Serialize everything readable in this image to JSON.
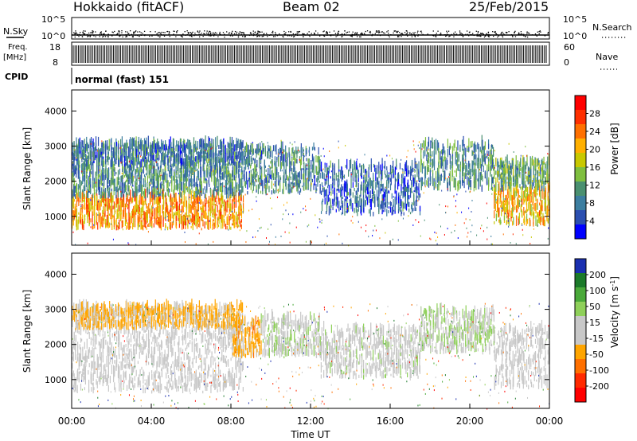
{
  "header": {
    "site": "Hokkaido (fitACF)",
    "beam": "Beam 02",
    "date": "25/Feb/2015"
  },
  "strip_panels": {
    "nsky_label": "N.Sky",
    "nsearch_label": "N.Search",
    "nsky_tick_top": "10^5",
    "nsky_tick_bottom": "10^0",
    "freq_label": "Freq.",
    "freq_unit": "[MHz]",
    "freq_ticks": [
      "18",
      "8"
    ],
    "nave_label": "Nave",
    "nave_ticks": [
      "60",
      "0"
    ],
    "cpid_label": "CPID",
    "cpid_text": "normal (fast) 151"
  },
  "colors": {
    "power_scale": [
      "#0000ff",
      "#2b4fb0",
      "#3c7ea0",
      "#4a9070",
      "#7fbf3f",
      "#c8c800",
      "#ffb000",
      "#ff7000",
      "#ff3000",
      "#ff0000"
    ],
    "velocity_scale": [
      "#1a2fb0",
      "#1c7a2a",
      "#4aa93a",
      "#8fd05a",
      "#c8c8c8",
      "#c8c8c8",
      "#ffa500",
      "#ff7000",
      "#ff2a00",
      "#ff0000"
    ]
  },
  "chart_data": [
    {
      "type": "heatmap",
      "name": "power",
      "ylabel": "Slant Range [km]",
      "ylim": [
        180,
        4600
      ],
      "yticks": [
        1000,
        2000,
        3000,
        4000
      ],
      "xlim": [
        0,
        24
      ],
      "colorbar": {
        "label": "Power [dB]",
        "ticks": [
          "4",
          "8",
          "12",
          "16",
          "20",
          "24",
          "28"
        ],
        "range": [
          0,
          32
        ]
      },
      "bands": [
        {
          "t0": 0.0,
          "t1": 8.6,
          "r0": 600,
          "r1": 1500,
          "level": 22
        },
        {
          "t0": 0.0,
          "t1": 8.6,
          "r0": 1500,
          "r1": 2400,
          "level": 10
        },
        {
          "t0": 0.0,
          "t1": 8.6,
          "r0": 2400,
          "r1": 3000,
          "level": 8
        },
        {
          "t0": 8.6,
          "t1": 12.5,
          "r0": 1600,
          "r1": 2900,
          "level": 9
        },
        {
          "t0": 12.5,
          "t1": 17.5,
          "r0": 1000,
          "r1": 2400,
          "level": 7
        },
        {
          "t0": 17.5,
          "t1": 21.2,
          "r0": 1700,
          "r1": 3000,
          "level": 10
        },
        {
          "t0": 21.2,
          "t1": 24.0,
          "r0": 700,
          "r1": 1700,
          "level": 20
        },
        {
          "t0": 21.2,
          "t1": 24.0,
          "r0": 1700,
          "r1": 2500,
          "level": 12
        }
      ]
    },
    {
      "type": "heatmap",
      "name": "velocity",
      "ylabel": "Slant Range [km]",
      "ylim": [
        180,
        4600
      ],
      "yticks": [
        1000,
        2000,
        3000,
        4000
      ],
      "xlim": [
        0,
        24
      ],
      "xticks": [
        "00:00",
        "04:00",
        "08:00",
        "12:00",
        "16:00",
        "20:00",
        "00:00"
      ],
      "xlabel": "Time UT",
      "colorbar": {
        "label": "Velocity [m s^-1]",
        "ticks": [
          "200",
          "100",
          "50",
          "15",
          "-15",
          "-50",
          "-100",
          "-200"
        ],
        "range": [
          -250,
          250
        ]
      },
      "bands": [
        {
          "t0": 0.0,
          "t1": 8.6,
          "r0": 600,
          "r1": 2400,
          "level": 0
        },
        {
          "t0": 0.0,
          "t1": 8.6,
          "r0": 2400,
          "r1": 3000,
          "level": -60
        },
        {
          "t0": 8.0,
          "t1": 9.5,
          "r0": 1600,
          "r1": 2600,
          "level": -70
        },
        {
          "t0": 9.5,
          "t1": 12.5,
          "r0": 1600,
          "r1": 2700,
          "level": 30
        },
        {
          "t0": 12.5,
          "t1": 17.5,
          "r0": 1000,
          "r1": 2400,
          "level": 20
        },
        {
          "t0": 17.5,
          "t1": 21.2,
          "r0": 1700,
          "r1": 2900,
          "level": 40
        },
        {
          "t0": 21.2,
          "t1": 24.0,
          "r0": 700,
          "r1": 2400,
          "level": 0
        }
      ]
    }
  ]
}
